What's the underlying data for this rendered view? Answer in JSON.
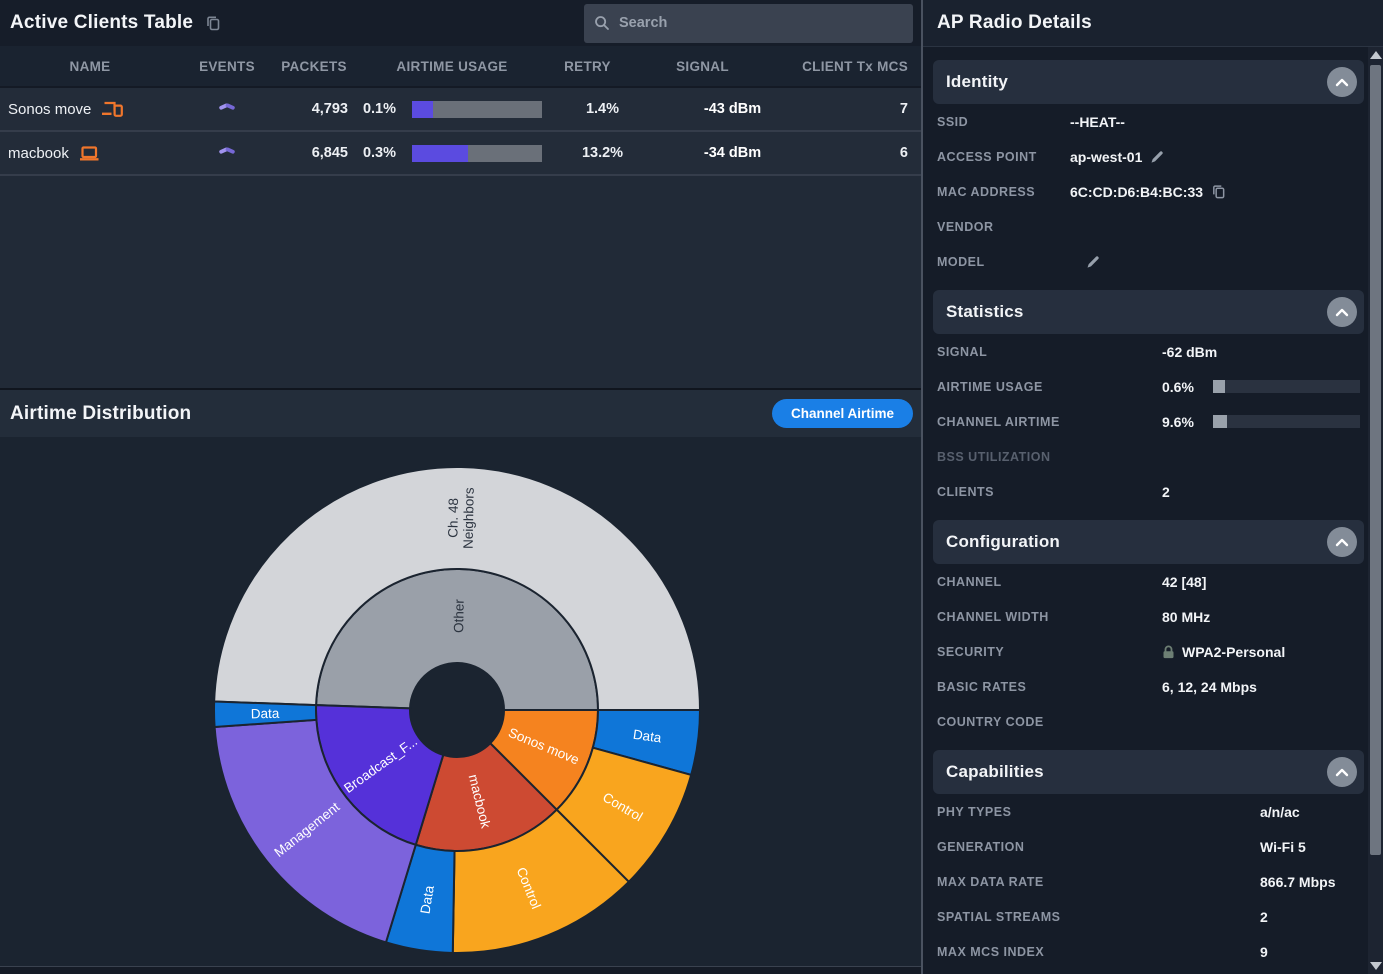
{
  "clients_table": {
    "title": "Active Clients Table",
    "search_placeholder": "Search",
    "columns": [
      "NAME",
      "EVENTS",
      "PACKETS",
      "AIRTIME USAGE",
      "RETRY",
      "SIGNAL",
      "CLIENT Tx MCS"
    ],
    "rows": [
      {
        "name": "Sonos move",
        "packets": "4,793",
        "airtime_pct": "0.1%",
        "airtime_bar_percent": 16,
        "retry": "1.4%",
        "signal": "-43 dBm",
        "client_tx_mcs": "7"
      },
      {
        "name": "macbook",
        "packets": "6,845",
        "airtime_pct": "0.3%",
        "airtime_bar_percent": 43,
        "retry": "13.2%",
        "signal": "-34 dBm",
        "client_tx_mcs": "6"
      }
    ]
  },
  "airtime_panel": {
    "title": "Airtime Distribution",
    "button_label": "Channel Airtime",
    "button_color": "#1a7fe6"
  },
  "chart_data": {
    "type": "sunburst",
    "title": "Airtime Distribution",
    "angle_unit": "compass degrees clockwise from north",
    "center": [
      457,
      273
    ],
    "radii": [
      47,
      141,
      243
    ],
    "label_radius": [
      94,
      192
    ],
    "stroke": "#1b2430",
    "legend": "inner ring = traffic source, outer ring = frame type share of channel airtime",
    "segments": [
      {
        "ring": 1,
        "name": "Other",
        "parent": "",
        "start_deg": 272,
        "end_deg": 450,
        "color": "#9aa0a9",
        "label_color": "#2c3440"
      },
      {
        "ring": 1,
        "name": "Sonos move",
        "parent": "",
        "start_deg": 90,
        "end_deg": 135,
        "color": "#f5831f",
        "label_color": "#ffffff"
      },
      {
        "ring": 1,
        "name": "macbook",
        "parent": "",
        "start_deg": 135,
        "end_deg": 197,
        "color": "#cd4a32",
        "label_color": "#ffffff"
      },
      {
        "ring": 1,
        "name": "Broadcast_F...",
        "parent": "",
        "start_deg": 197,
        "end_deg": 272,
        "color": "#5531d9",
        "label_color": "#ffffff"
      },
      {
        "ring": 2,
        "name": "Ch. 48\nNeighbors",
        "parent": "Other",
        "start_deg": 272,
        "end_deg": 450,
        "color": "#d3d5d9",
        "label_color": "#2c3440"
      },
      {
        "ring": 2,
        "name": "Data",
        "parent": "Sonos move",
        "start_deg": 90,
        "end_deg": 105.5,
        "color": "#0f76d8",
        "label_color": "#ffffff"
      },
      {
        "ring": 2,
        "name": "Control",
        "parent": "Sonos move",
        "start_deg": 105.5,
        "end_deg": 135,
        "color": "#f9a51e",
        "label_color": "#ffffff"
      },
      {
        "ring": 2,
        "name": "Control",
        "parent": "macbook",
        "start_deg": 135,
        "end_deg": 181,
        "color": "#f9a51e",
        "label_color": "#ffffff"
      },
      {
        "ring": 2,
        "name": "Data",
        "parent": "macbook",
        "start_deg": 181,
        "end_deg": 197,
        "color": "#0f76d8",
        "label_color": "#ffffff"
      },
      {
        "ring": 2,
        "name": "Management",
        "parent": "Broadcast_F...",
        "start_deg": 197,
        "end_deg": 266,
        "color": "#7c63dc",
        "label_color": "#ffffff"
      },
      {
        "ring": 2,
        "name": "Data",
        "parent": "Broadcast_F...",
        "start_deg": 266,
        "end_deg": 272,
        "color": "#0f76d8",
        "label_color": "#ffffff"
      }
    ]
  },
  "ap_details": {
    "title": "AP Radio Details",
    "sections": [
      {
        "title": "Identity",
        "rows": [
          {
            "label": "SSID",
            "value": "--HEAT--"
          },
          {
            "label": "ACCESS POINT",
            "value": "ap-west-01"
          },
          {
            "label": "MAC ADDRESS",
            "value": "6C:CD:D6:B4:BC:33"
          },
          {
            "label": "VENDOR",
            "value": ""
          },
          {
            "label": "MODEL",
            "value": ""
          }
        ]
      },
      {
        "title": "Statistics",
        "rows": [
          {
            "label": "SIGNAL",
            "value": "-62 dBm"
          },
          {
            "label": "AIRTIME USAGE",
            "value": "0.6%",
            "bar_percent": 8
          },
          {
            "label": "CHANNEL AIRTIME",
            "value": "9.6%",
            "bar_percent": 9.5
          },
          {
            "label": "BSS UTILIZATION",
            "value": ""
          },
          {
            "label": "CLIENTS",
            "value": "2"
          }
        ]
      },
      {
        "title": "Configuration",
        "rows": [
          {
            "label": "CHANNEL",
            "value": "42 [48]"
          },
          {
            "label": "CHANNEL WIDTH",
            "value": "80 MHz"
          },
          {
            "label": "SECURITY",
            "value": "WPA2-Personal"
          },
          {
            "label": "BASIC RATES",
            "value": "6, 12, 24 Mbps"
          },
          {
            "label": "COUNTRY CODE",
            "value": ""
          }
        ]
      },
      {
        "title": "Capabilities",
        "rows": [
          {
            "label": "PHY TYPES",
            "value": "a/n/ac"
          },
          {
            "label": "GENERATION",
            "value": "Wi-Fi 5"
          },
          {
            "label": "MAX DATA RATE",
            "value": "866.7 Mbps"
          },
          {
            "label": "SPATIAL STREAMS",
            "value": "2"
          },
          {
            "label": "MAX MCS INDEX",
            "value": "9"
          }
        ]
      }
    ]
  }
}
